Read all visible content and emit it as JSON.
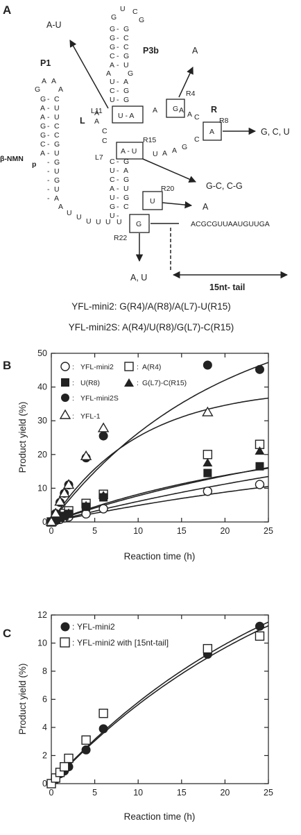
{
  "panel_a": {
    "letter": "A",
    "labels": {
      "p1": "P1",
      "p3b": "P3b",
      "l": "L",
      "r": "R",
      "l11": "L11",
      "l7": "L7",
      "r4": "R4",
      "r8": "R8",
      "r15": "R15",
      "r20": "R20",
      "r22": "R22",
      "beta_nmn": "β-NMN",
      "beta_nmn_p": "p",
      "tail_seq": "ACGCGUUAAUGUUGA",
      "tail_label": "15nt- tail"
    },
    "mutations": {
      "l11": "A-U",
      "r4": "A",
      "r8": "G, C, U",
      "r15": "G-C, C-G",
      "r20": "A",
      "r22": "A, U"
    },
    "boxed": {
      "l11": "U - A",
      "r4": "G",
      "r8": "A",
      "r15": "A - U",
      "r20": "U",
      "r22": "G"
    },
    "variants": [
      "YFL-mini2: G(R4)/A(R8)/A(L7)-U(R15)",
      "YFL-mini2S: A(R4)/U(R8)/G(L7)-C(R15)"
    ]
  },
  "chart_data": [
    {
      "panel": "B",
      "type": "scatter",
      "xlabel": "Reaction time (h)",
      "ylabel": "Product yield (%)",
      "xlim": [
        0,
        25
      ],
      "ylim": [
        0,
        50
      ],
      "xticks": [
        0,
        5,
        10,
        15,
        20,
        25
      ],
      "yticks": [
        0,
        10,
        20,
        30,
        40,
        50
      ],
      "legend_position": "top-left",
      "series": [
        {
          "name": "YFL-mini2",
          "marker": "open-circle",
          "x": [
            0,
            0.5,
            1,
            1.5,
            2,
            4,
            6,
            18,
            24
          ],
          "y": [
            0,
            0.4,
            0.8,
            1.2,
            1.5,
            2.4,
            3.9,
            9.1,
            11.1
          ]
        },
        {
          "name": "A(R4)",
          "marker": "open-square",
          "x": [
            0,
            0.5,
            1,
            1.5,
            2,
            4,
            6,
            18,
            24
          ],
          "y": [
            0,
            0.8,
            1.6,
            2.5,
            3.3,
            5.5,
            8.2,
            20,
            23
          ]
        },
        {
          "name": "U(R8)",
          "marker": "filled-square",
          "x": [
            0,
            0.5,
            1,
            1.5,
            2,
            4,
            6,
            18,
            24
          ],
          "y": [
            0,
            0.6,
            1.2,
            1.8,
            2.4,
            4.5,
            7.3,
            14.5,
            16.5
          ]
        },
        {
          "name": "G(L7)-C(R15)",
          "marker": "filled-triangle",
          "x": [
            0,
            0.5,
            1,
            1.5,
            2,
            4,
            6,
            18,
            24
          ],
          "y": [
            0,
            0.7,
            1.4,
            2.0,
            2.6,
            4.8,
            7.8,
            17.5,
            21
          ]
        },
        {
          "name": "YFL-mini2S",
          "marker": "filled-circle",
          "x": [
            0,
            0.5,
            1,
            1.5,
            2,
            4,
            6,
            18,
            24
          ],
          "y": [
            0,
            2.5,
            5.8,
            8.5,
            11,
            19,
            25.5,
            46.5,
            45.2
          ]
        },
        {
          "name": "YFL-1",
          "marker": "open-triangle",
          "x": [
            0,
            0.5,
            1,
            1.5,
            2,
            4,
            6,
            18
          ],
          "y": [
            0,
            2.5,
            6,
            8.5,
            11,
            19.5,
            27.8,
            32.5
          ]
        }
      ],
      "fits": [
        {
          "A": 65,
          "k": 0.052
        },
        {
          "A": 40,
          "k": 0.1
        },
        {
          "A": 38,
          "k": 0.0175
        },
        {
          "A": 26,
          "k": 0.0379
        },
        {
          "A": 33,
          "k": 0.0268
        },
        {
          "A": 25,
          "k": 0.0218
        }
      ]
    },
    {
      "panel": "C",
      "type": "scatter",
      "xlabel": "Reaction time (h)",
      "ylabel": "Product yield (%)",
      "xlim": [
        0,
        25
      ],
      "ylim": [
        0,
        12
      ],
      "xticks": [
        0,
        5,
        10,
        15,
        20,
        25
      ],
      "yticks": [
        0,
        2,
        4,
        6,
        8,
        10,
        12
      ],
      "legend_position": "top-left",
      "series": [
        {
          "name": "YFL-mini2",
          "marker": "filled-circle",
          "x": [
            0,
            0.5,
            1,
            1.5,
            2,
            4,
            6,
            18,
            24
          ],
          "y": [
            0,
            0.3,
            0.7,
            0.9,
            1.2,
            2.4,
            3.9,
            9.2,
            11.2
          ]
        },
        {
          "name": "YFL-mini2 with [15nt-tail]",
          "marker": "open-square",
          "x": [
            0,
            0.5,
            1,
            1.5,
            2,
            4,
            6,
            18,
            24
          ],
          "y": [
            0,
            0.4,
            0.8,
            1.2,
            1.8,
            3.1,
            5.0,
            9.6,
            10.5
          ]
        }
      ],
      "fits": [
        {
          "A": 20,
          "k": 0.0342
        },
        {
          "A": 20,
          "k": 0.033
        }
      ]
    }
  ]
}
